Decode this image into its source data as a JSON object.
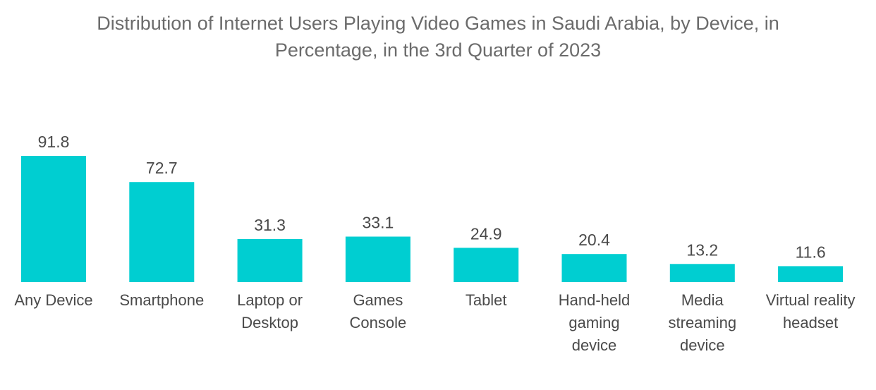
{
  "chart_data": {
    "type": "bar",
    "title_lines": [
      "Distribution of Internet Users Playing Video Games in Saudi Arabia, by Device, in",
      "Percentage, in the 3rd Quarter of 2023"
    ],
    "title": "Distribution of Internet Users Playing Video Games in Saudi Arabia, by Device, in Percentage, in the 3rd Quarter of 2023",
    "categories": [
      [
        "Any Device"
      ],
      [
        "Smartphone"
      ],
      [
        "Laptop or",
        "Desktop"
      ],
      [
        "Games",
        "Console"
      ],
      [
        "Tablet"
      ],
      [
        "Hand-held",
        "gaming",
        "device"
      ],
      [
        "Media",
        "streaming",
        "device"
      ],
      [
        "Virtual reality",
        "headset"
      ]
    ],
    "values": [
      91.8,
      72.7,
      31.3,
      33.1,
      24.9,
      20.4,
      13.2,
      11.6
    ],
    "value_labels": [
      "91.8",
      "72.7",
      "31.3",
      "33.1",
      "24.9",
      "20.4",
      "13.2",
      "11.6"
    ],
    "xlabel": "",
    "ylabel": "",
    "ylim": [
      0,
      100
    ],
    "grid": false,
    "legend": "none",
    "bar_color": "#00CED1"
  }
}
